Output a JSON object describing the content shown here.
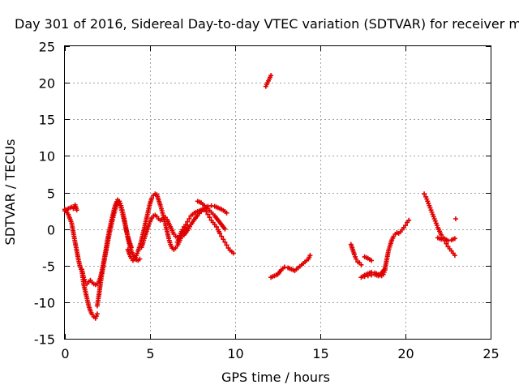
{
  "chart_data": {
    "type": "scatter",
    "title": "Day 301 of 2016, Sidereal Day-to-day VTEC variation (SDTVAR) for receiver m",
    "xlabel": "GPS time / hours",
    "ylabel": "SDTVAR / TECUs",
    "xlim": [
      0,
      25
    ],
    "ylim": [
      -15,
      25
    ],
    "xticks": [
      "0",
      "5",
      "10",
      "15",
      "20",
      "25"
    ],
    "yticks": [
      "-15",
      "-10",
      "-5",
      "0",
      "5",
      "10",
      "15",
      "20",
      "25"
    ],
    "grid": true,
    "marker": "plus",
    "color": "#e00000",
    "series": [
      {
        "segments": [
          [
            [
              0.0,
              2.5
            ],
            [
              0.2,
              2.8
            ],
            [
              0.4,
              3.0
            ],
            [
              0.5,
              2.8
            ],
            [
              0.6,
              3.3
            ],
            [
              0.7,
              2.6
            ]
          ],
          [
            [
              0.0,
              2.7
            ],
            [
              0.2,
              2.0
            ],
            [
              0.4,
              0.8
            ],
            [
              0.5,
              -0.5
            ],
            [
              0.6,
              -1.8
            ],
            [
              0.7,
              -3.0
            ],
            [
              0.8,
              -4.2
            ],
            [
              0.9,
              -5.2
            ],
            [
              1.0,
              -5.8
            ],
            [
              1.05,
              -6.6
            ],
            [
              1.1,
              -7.5
            ],
            [
              1.2,
              -8.5
            ],
            [
              1.3,
              -9.5
            ],
            [
              1.4,
              -10.5
            ],
            [
              1.5,
              -11.2
            ],
            [
              1.6,
              -11.7
            ],
            [
              1.7,
              -12.0
            ],
            [
              1.8,
              -12.2
            ],
            [
              1.9,
              -11.6
            ]
          ],
          [
            [
              1.0,
              -5.5
            ],
            [
              1.1,
              -6.6
            ],
            [
              1.2,
              -7.2
            ],
            [
              1.3,
              -7.5
            ],
            [
              1.4,
              -7.2
            ],
            [
              1.5,
              -7.0
            ],
            [
              1.6,
              -7.3
            ],
            [
              1.7,
              -7.5
            ],
            [
              1.8,
              -7.6
            ],
            [
              1.9,
              -7.5
            ],
            [
              2.0,
              -7.2
            ],
            [
              2.1,
              -6.5
            ],
            [
              2.2,
              -5.5
            ],
            [
              2.3,
              -4.2
            ],
            [
              2.4,
              -3.0
            ],
            [
              2.5,
              -1.5
            ],
            [
              2.6,
              -0.3
            ],
            [
              2.7,
              0.8
            ],
            [
              2.8,
              1.8
            ],
            [
              2.9,
              2.8
            ],
            [
              3.0,
              3.5
            ],
            [
              3.1,
              4.0
            ],
            [
              3.2,
              3.8
            ],
            [
              3.3,
              3.2
            ],
            [
              3.4,
              2.3
            ],
            [
              3.5,
              1.2
            ],
            [
              3.6,
              0.0
            ],
            [
              3.7,
              -1.2
            ],
            [
              3.8,
              -2.2
            ],
            [
              3.9,
              -3.0
            ],
            [
              4.0,
              -3.5
            ],
            [
              4.1,
              -4.0
            ],
            [
              4.2,
              -4.2
            ],
            [
              4.3,
              -4.3
            ],
            [
              4.4,
              -4.1
            ]
          ],
          [
            [
              1.9,
              -10.5
            ],
            [
              2.0,
              -9.0
            ],
            [
              2.1,
              -7.3
            ],
            [
              2.2,
              -5.8
            ],
            [
              2.3,
              -4.5
            ],
            [
              2.4,
              -3.2
            ],
            [
              2.5,
              -2.0
            ],
            [
              2.6,
              -0.8
            ],
            [
              2.7,
              0.3
            ],
            [
              2.8,
              1.3
            ],
            [
              2.9,
              2.2
            ],
            [
              3.0,
              3.0
            ],
            [
              3.1,
              3.6
            ],
            [
              3.2,
              3.5
            ],
            [
              3.3,
              2.9
            ],
            [
              3.4,
              2.0
            ],
            [
              3.5,
              1.0
            ],
            [
              3.6,
              -0.1
            ],
            [
              3.7,
              -1.0
            ],
            [
              3.8,
              -1.8
            ],
            [
              3.9,
              -2.5
            ]
          ],
          [
            [
              3.7,
              -2.8
            ],
            [
              3.8,
              -3.5
            ],
            [
              3.9,
              -4.0
            ],
            [
              4.0,
              -4.3
            ],
            [
              4.1,
              -4.1
            ],
            [
              4.2,
              -3.6
            ],
            [
              4.3,
              -3.0
            ],
            [
              4.4,
              -2.3
            ],
            [
              4.5,
              -1.5
            ],
            [
              4.6,
              -0.5
            ],
            [
              4.7,
              0.5
            ],
            [
              4.8,
              1.5
            ],
            [
              4.9,
              2.5
            ],
            [
              5.0,
              3.5
            ],
            [
              5.1,
              4.2
            ],
            [
              5.2,
              4.6
            ],
            [
              5.3,
              4.8
            ],
            [
              5.4,
              4.7
            ],
            [
              5.5,
              4.0
            ],
            [
              5.6,
              3.3
            ],
            [
              5.7,
              2.5
            ],
            [
              5.8,
              1.6
            ],
            [
              5.9,
              0.7
            ],
            [
              6.0,
              -0.3
            ],
            [
              6.1,
              -1.3
            ],
            [
              6.2,
              -2.1
            ],
            [
              6.3,
              -2.6
            ],
            [
              6.4,
              -2.8
            ],
            [
              6.5,
              -2.6
            ],
            [
              6.6,
              -2.3
            ],
            [
              6.7,
              -1.8
            ],
            [
              6.8,
              -1.3
            ],
            [
              6.9,
              -0.8
            ],
            [
              7.0,
              -0.3
            ],
            [
              7.1,
              0.2
            ],
            [
              7.2,
              0.5
            ]
          ],
          [
            [
              4.5,
              -2.5
            ],
            [
              4.6,
              -1.8
            ],
            [
              4.7,
              -1.0
            ],
            [
              4.8,
              -0.3
            ],
            [
              4.9,
              0.4
            ],
            [
              5.0,
              1.0
            ],
            [
              5.1,
              1.5
            ],
            [
              5.2,
              1.8
            ],
            [
              5.3,
              1.9
            ],
            [
              5.4,
              1.7
            ],
            [
              5.5,
              1.4
            ],
            [
              5.6,
              1.2
            ],
            [
              5.7,
              1.3
            ],
            [
              5.8,
              1.5
            ],
            [
              5.9,
              1.6
            ],
            [
              6.0,
              1.3
            ],
            [
              6.1,
              0.8
            ],
            [
              6.2,
              0.3
            ],
            [
              6.3,
              -0.2
            ],
            [
              6.4,
              -0.7
            ],
            [
              6.5,
              -1.0
            ],
            [
              6.6,
              -1.1
            ]
          ],
          [
            [
              6.6,
              -1.8
            ],
            [
              6.7,
              -1.2
            ],
            [
              6.8,
              -0.6
            ],
            [
              6.9,
              -0.1
            ],
            [
              7.0,
              0.3
            ],
            [
              7.1,
              0.6
            ],
            [
              7.2,
              1.0
            ],
            [
              7.3,
              1.4
            ],
            [
              7.4,
              1.8
            ],
            [
              7.5,
              2.0
            ],
            [
              7.6,
              2.2
            ],
            [
              7.7,
              2.3
            ],
            [
              7.8,
              2.4
            ],
            [
              7.9,
              2.5
            ],
            [
              8.0,
              2.6
            ],
            [
              8.1,
              2.7
            ],
            [
              8.2,
              2.6
            ],
            [
              8.3,
              2.4
            ],
            [
              8.4,
              2.0
            ],
            [
              8.5,
              1.6
            ],
            [
              8.6,
              1.2
            ],
            [
              8.7,
              0.9
            ],
            [
              8.8,
              0.6
            ],
            [
              8.9,
              0.3
            ],
            [
              9.0,
              -0.1
            ],
            [
              9.1,
              -0.6
            ],
            [
              9.2,
              -1.0
            ],
            [
              9.3,
              -1.4
            ],
            [
              9.4,
              -1.8
            ],
            [
              9.5,
              -2.2
            ],
            [
              9.6,
              -2.6
            ],
            [
              9.7,
              -2.9
            ],
            [
              9.8,
              -3.1
            ],
            [
              9.9,
              -3.3
            ]
          ],
          [
            [
              7.0,
              -0.8
            ],
            [
              7.2,
              -0.2
            ],
            [
              7.4,
              0.6
            ],
            [
              7.6,
              1.3
            ],
            [
              7.8,
              1.9
            ],
            [
              8.0,
              2.4
            ],
            [
              8.2,
              2.8
            ],
            [
              8.4,
              3.1
            ],
            [
              8.6,
              3.2
            ],
            [
              8.8,
              3.1
            ],
            [
              9.0,
              2.9
            ],
            [
              9.2,
              2.7
            ],
            [
              9.4,
              2.4
            ],
            [
              9.5,
              2.2
            ]
          ],
          [
            [
              7.8,
              3.8
            ],
            [
              8.0,
              3.6
            ],
            [
              8.2,
              3.2
            ],
            [
              8.4,
              2.8
            ],
            [
              8.6,
              2.3
            ],
            [
              8.8,
              1.8
            ],
            [
              9.0,
              1.2
            ],
            [
              9.2,
              0.6
            ],
            [
              9.4,
              0.0
            ]
          ],
          [
            [
              11.8,
              19.5
            ],
            [
              11.9,
              20.0
            ],
            [
              12.0,
              20.5
            ],
            [
              12.1,
              21.0
            ]
          ],
          [
            [
              12.1,
              -6.6
            ],
            [
              12.3,
              -6.4
            ],
            [
              12.5,
              -6.2
            ],
            [
              12.7,
              -5.6
            ],
            [
              12.9,
              -5.2
            ],
            [
              13.1,
              -5.3
            ],
            [
              13.3,
              -5.5
            ],
            [
              13.5,
              -5.7
            ],
            [
              13.7,
              -5.3
            ],
            [
              13.9,
              -4.9
            ],
            [
              14.1,
              -4.5
            ],
            [
              14.3,
              -4.1
            ],
            [
              14.4,
              -3.6
            ]
          ],
          [
            [
              16.8,
              -2.1
            ],
            [
              16.9,
              -2.8
            ],
            [
              17.0,
              -3.5
            ],
            [
              17.1,
              -4.1
            ],
            [
              17.2,
              -4.5
            ],
            [
              17.3,
              -4.6
            ],
            [
              17.4,
              -4.9
            ]
          ],
          [
            [
              17.6,
              -3.8
            ],
            [
              17.8,
              -4.0
            ],
            [
              18.0,
              -4.3
            ]
          ],
          [
            [
              17.4,
              -6.6
            ],
            [
              17.6,
              -6.3
            ],
            [
              17.8,
              -6.1
            ],
            [
              18.0,
              -5.9
            ],
            [
              18.2,
              -6.0
            ],
            [
              18.4,
              -6.2
            ],
            [
              18.6,
              -6.4
            ],
            [
              18.7,
              -6.2
            ],
            [
              18.8,
              -5.6
            ]
          ],
          [
            [
              17.6,
              -6.5
            ],
            [
              17.8,
              -6.4
            ],
            [
              18.0,
              -6.3
            ],
            [
              18.2,
              -6.2
            ],
            [
              18.4,
              -6.4
            ],
            [
              18.6,
              -6.0
            ],
            [
              18.8,
              -5.4
            ],
            [
              18.9,
              -4.2
            ],
            [
              19.0,
              -3.0
            ],
            [
              19.1,
              -2.2
            ],
            [
              19.2,
              -1.5
            ],
            [
              19.3,
              -1.0
            ],
            [
              19.4,
              -0.7
            ],
            [
              19.5,
              -0.5
            ],
            [
              19.6,
              -0.6
            ],
            [
              19.7,
              -0.4
            ],
            [
              19.8,
              -0.1
            ],
            [
              19.9,
              0.2
            ],
            [
              20.0,
              0.5
            ],
            [
              20.1,
              0.9
            ],
            [
              20.2,
              1.2
            ]
          ],
          [
            [
              21.1,
              4.8
            ],
            [
              21.2,
              4.4
            ],
            [
              21.3,
              3.8
            ],
            [
              21.4,
              3.2
            ],
            [
              21.5,
              2.6
            ],
            [
              21.6,
              2.0
            ],
            [
              21.7,
              1.4
            ],
            [
              21.8,
              0.8
            ],
            [
              21.9,
              0.2
            ],
            [
              22.0,
              -0.3
            ],
            [
              22.1,
              -0.8
            ],
            [
              22.2,
              -1.2
            ],
            [
              22.3,
              -1.6
            ],
            [
              22.4,
              -2.0
            ],
            [
              22.5,
              -2.4
            ],
            [
              22.6,
              -2.7
            ],
            [
              22.7,
              -3.0
            ],
            [
              22.8,
              -3.3
            ],
            [
              22.9,
              -3.6
            ]
          ],
          [
            [
              21.9,
              -1.2
            ],
            [
              22.1,
              -1.4
            ],
            [
              22.3,
              -1.3
            ],
            [
              22.5,
              -1.6
            ],
            [
              22.7,
              -1.5
            ],
            [
              22.9,
              -1.3
            ]
          ],
          [
            [
              22.95,
              1.4
            ]
          ]
        ]
      }
    ]
  }
}
